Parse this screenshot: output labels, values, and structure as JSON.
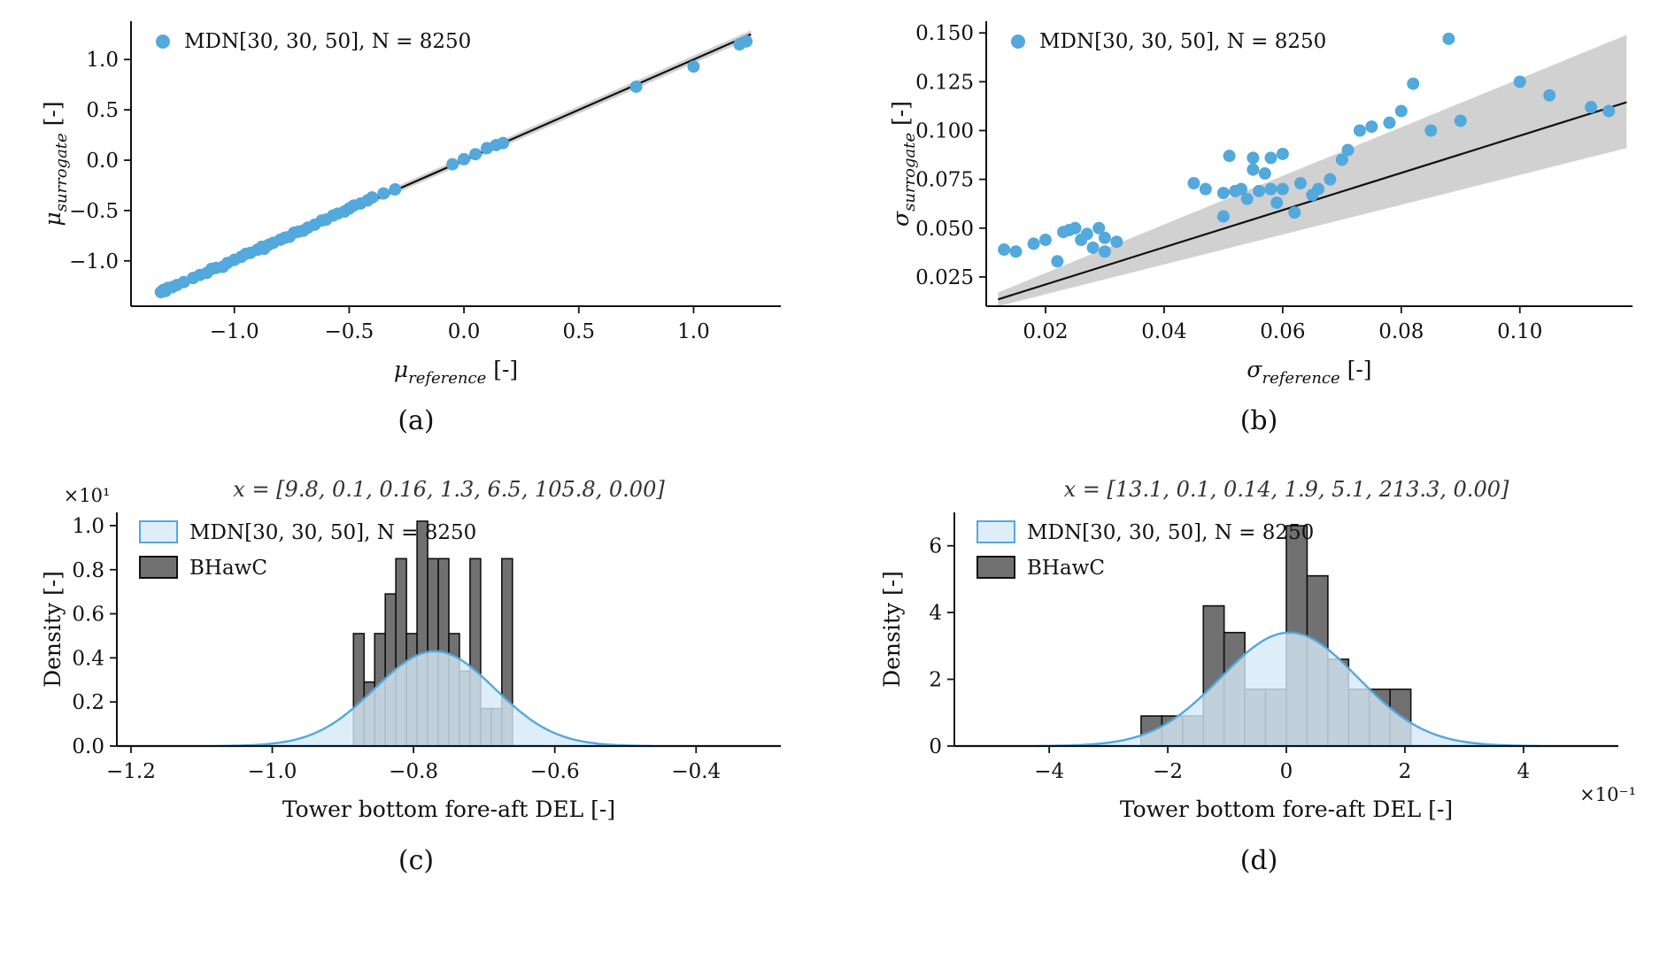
{
  "colors": {
    "blue": "#53a8dc",
    "blue_fill": "#d4eaf8",
    "gray": "#585858",
    "band": "#cccccc",
    "black": "#111111"
  },
  "chart_data": [
    {
      "id": "a",
      "type": "scatter",
      "caption": "(a)",
      "xlabel": {
        "sym": "μ",
        "sub": "reference",
        "unit": "[-]"
      },
      "ylabel": {
        "sym": "μ",
        "sub": "surrogate",
        "unit": "[-]"
      },
      "xlim": [
        -1.45,
        1.38
      ],
      "ylim": [
        -1.45,
        1.38
      ],
      "xticks": [
        -1.0,
        -0.5,
        0.0,
        0.5,
        1.0
      ],
      "yticks": [
        -1.0,
        -0.5,
        0.0,
        0.5,
        1.0
      ],
      "xfmt": 1,
      "yfmt": 1,
      "legend": [
        {
          "marker": "dot",
          "label": "MDN[30, 30, 50], N = 8250"
        }
      ],
      "band": {
        "x": [
          -1.33,
          1.25
        ],
        "lower": [
          -1.36,
          1.21
        ],
        "upper": [
          -1.3,
          1.29
        ]
      },
      "line": {
        "x": [
          -1.33,
          1.25
        ],
        "y": [
          -1.33,
          1.25
        ]
      },
      "points": [
        [
          -1.32,
          -1.31
        ],
        [
          -1.31,
          -1.29
        ],
        [
          -1.3,
          -1.3
        ],
        [
          -1.29,
          -1.27
        ],
        [
          -1.27,
          -1.26
        ],
        [
          -1.25,
          -1.24
        ],
        [
          -1.22,
          -1.21
        ],
        [
          -1.18,
          -1.17
        ],
        [
          -1.15,
          -1.14
        ],
        [
          -1.12,
          -1.12
        ],
        [
          -1.1,
          -1.08
        ],
        [
          -1.08,
          -1.07
        ],
        [
          -1.05,
          -1.06
        ],
        [
          -1.03,
          -1.02
        ],
        [
          -1.0,
          -0.99
        ],
        [
          -0.97,
          -0.96
        ],
        [
          -0.95,
          -0.93
        ],
        [
          -0.93,
          -0.92
        ],
        [
          -0.9,
          -0.89
        ],
        [
          -0.88,
          -0.86
        ],
        [
          -0.87,
          -0.88
        ],
        [
          -0.85,
          -0.84
        ],
        [
          -0.83,
          -0.82
        ],
        [
          -0.8,
          -0.79
        ],
        [
          -0.78,
          -0.77
        ],
        [
          -0.76,
          -0.76
        ],
        [
          -0.74,
          -0.72
        ],
        [
          -0.72,
          -0.71
        ],
        [
          -0.7,
          -0.7
        ],
        [
          -0.68,
          -0.67
        ],
        [
          -0.65,
          -0.64
        ],
        [
          -0.62,
          -0.6
        ],
        [
          -0.6,
          -0.59
        ],
        [
          -0.57,
          -0.55
        ],
        [
          -0.55,
          -0.53
        ],
        [
          -0.52,
          -0.51
        ],
        [
          -0.5,
          -0.48
        ],
        [
          -0.48,
          -0.45
        ],
        [
          -0.45,
          -0.43
        ],
        [
          -0.42,
          -0.4
        ],
        [
          -0.4,
          -0.37
        ],
        [
          -0.35,
          -0.33
        ],
        [
          -0.3,
          -0.29
        ],
        [
          -0.05,
          -0.04
        ],
        [
          0.0,
          0.01
        ],
        [
          0.05,
          0.06
        ],
        [
          0.1,
          0.12
        ],
        [
          0.14,
          0.15
        ],
        [
          0.17,
          0.17
        ],
        [
          0.75,
          0.73
        ],
        [
          1.0,
          0.93
        ],
        [
          1.2,
          1.15
        ],
        [
          1.23,
          1.18
        ]
      ]
    },
    {
      "id": "b",
      "type": "scatter",
      "caption": "(b)",
      "xlabel": {
        "sym": "σ",
        "sub": "reference",
        "unit": "[-]"
      },
      "ylabel": {
        "sym": "σ",
        "sub": "surrogate",
        "unit": "[-]"
      },
      "xlim": [
        0.01,
        0.119
      ],
      "ylim": [
        0.01,
        0.156
      ],
      "xticks": [
        0.02,
        0.04,
        0.06,
        0.08,
        0.1
      ],
      "yticks": [
        0.025,
        0.05,
        0.075,
        0.1,
        0.125,
        0.15
      ],
      "xfmt": 2,
      "yfmt": 3,
      "legend": [
        {
          "marker": "dot",
          "label": "MDN[30, 30, 50], N = 8250"
        }
      ],
      "band": {
        "x": [
          0.012,
          0.118
        ],
        "lower": [
          0.01,
          0.091
        ],
        "upper": [
          0.017,
          0.149
        ]
      },
      "line": {
        "x": [
          0.012,
          0.118
        ],
        "y": [
          0.0135,
          0.1145
        ]
      },
      "points": [
        [
          0.013,
          0.039
        ],
        [
          0.015,
          0.038
        ],
        [
          0.018,
          0.042
        ],
        [
          0.02,
          0.044
        ],
        [
          0.022,
          0.033
        ],
        [
          0.023,
          0.048
        ],
        [
          0.024,
          0.049
        ],
        [
          0.025,
          0.05
        ],
        [
          0.026,
          0.044
        ],
        [
          0.027,
          0.047
        ],
        [
          0.028,
          0.04
        ],
        [
          0.029,
          0.05
        ],
        [
          0.03,
          0.045
        ],
        [
          0.03,
          0.038
        ],
        [
          0.032,
          0.043
        ],
        [
          0.045,
          0.073
        ],
        [
          0.047,
          0.07
        ],
        [
          0.05,
          0.056
        ],
        [
          0.05,
          0.068
        ],
        [
          0.051,
          0.087
        ],
        [
          0.052,
          0.069
        ],
        [
          0.053,
          0.07
        ],
        [
          0.054,
          0.065
        ],
        [
          0.055,
          0.08
        ],
        [
          0.055,
          0.086
        ],
        [
          0.056,
          0.069
        ],
        [
          0.057,
          0.078
        ],
        [
          0.058,
          0.086
        ],
        [
          0.058,
          0.07
        ],
        [
          0.059,
          0.063
        ],
        [
          0.06,
          0.07
        ],
        [
          0.06,
          0.088
        ],
        [
          0.062,
          0.058
        ],
        [
          0.063,
          0.073
        ],
        [
          0.065,
          0.067
        ],
        [
          0.066,
          0.07
        ],
        [
          0.068,
          0.075
        ],
        [
          0.07,
          0.085
        ],
        [
          0.071,
          0.09
        ],
        [
          0.073,
          0.1
        ],
        [
          0.075,
          0.102
        ],
        [
          0.078,
          0.104
        ],
        [
          0.08,
          0.11
        ],
        [
          0.082,
          0.124
        ],
        [
          0.085,
          0.1
        ],
        [
          0.088,
          0.147
        ],
        [
          0.09,
          0.105
        ],
        [
          0.1,
          0.125
        ],
        [
          0.105,
          0.118
        ],
        [
          0.112,
          0.112
        ],
        [
          0.115,
          0.11
        ]
      ]
    },
    {
      "id": "c",
      "type": "histogram",
      "caption": "(c)",
      "title": {
        "text": "x = [9.8, 0.1, 0.16, 1.3, 6.5, 105.8, 0.00]"
      },
      "xlabel": {
        "text": "Tower bottom fore-aft DEL [-]"
      },
      "ylabel": {
        "text": "Density [-]"
      },
      "xlim": [
        -1.22,
        -0.28
      ],
      "ylim": [
        0,
        1.06
      ],
      "xticks": [
        -1.2,
        -1.0,
        -0.8,
        -0.6,
        -0.4
      ],
      "yticks": [
        0.0,
        0.2,
        0.4,
        0.6,
        0.8,
        1.0
      ],
      "xfmt": 1,
      "yfmt": 1,
      "offset": {
        "y": "×10¹"
      },
      "legend": [
        {
          "marker": "patch-mdn",
          "label": "MDN[30, 30, 50], N = 8250"
        },
        {
          "marker": "patch-bhawc",
          "label": "BHawC"
        }
      ],
      "hist": {
        "start": -0.885,
        "width": 0.015,
        "heights": [
          0.51,
          0.29,
          0.51,
          0.69,
          0.85,
          0.51,
          1.02,
          0.85,
          0.85,
          0.51,
          0.34,
          0.85,
          0.17,
          0.17,
          0.85
        ]
      },
      "density": {
        "mean": -0.77,
        "sigma": 0.085,
        "amp": 0.43
      }
    },
    {
      "id": "d",
      "type": "histogram",
      "caption": "(d)",
      "title": {
        "text": "x = [13.1, 0.1, 0.14, 1.9, 5.1, 213.3, 0.00]"
      },
      "xlabel": {
        "text": "Tower bottom fore-aft DEL [-]"
      },
      "ylabel": {
        "text": "Density [-]"
      },
      "xlim": [
        -5.6,
        5.6
      ],
      "ylim": [
        0,
        7.0
      ],
      "xticks": [
        -4,
        -2,
        0,
        2,
        4
      ],
      "yticks": [
        0,
        2,
        4,
        6
      ],
      "xfmt": 0,
      "yfmt": 0,
      "offset": {
        "x": "×10⁻¹"
      },
      "legend": [
        {
          "marker": "patch-mdn",
          "label": "MDN[30, 30, 50], N = 8250"
        },
        {
          "marker": "patch-bhawc",
          "label": "BHawC"
        }
      ],
      "hist": {
        "start": -2.45,
        "width": 0.35,
        "heights": [
          0.9,
          0.9,
          0.9,
          4.2,
          3.4,
          1.7,
          1.7,
          6.6,
          5.1,
          2.6,
          1.7,
          1.7,
          1.7
        ]
      },
      "density": {
        "mean": 0.05,
        "sigma": 1.15,
        "amp": 3.4
      }
    }
  ]
}
